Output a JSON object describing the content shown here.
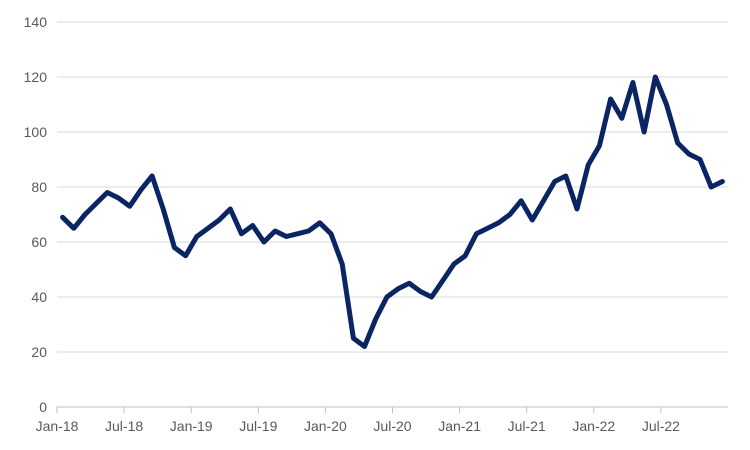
{
  "chart_data": {
    "type": "line",
    "title": "",
    "xlabel": "",
    "ylabel": "",
    "ylim": [
      0,
      140
    ],
    "y_ticks": [
      0,
      20,
      40,
      60,
      80,
      100,
      120,
      140
    ],
    "xlim": [
      "2018-01",
      "2022-12"
    ],
    "x_ticks": [
      "Jan-18",
      "Jul-18",
      "Jan-19",
      "Jul-19",
      "Jan-20",
      "Jul-20",
      "Jan-21",
      "Jul-21",
      "Jan-22",
      "Jul-22"
    ],
    "grid": "horizontal",
    "legend": "none",
    "line_color": "#0b2463",
    "series": [
      {
        "x": [
          "2018-01",
          "2018-02",
          "2018-03",
          "2018-04",
          "2018-05",
          "2018-06",
          "2018-07",
          "2018-08",
          "2018-09",
          "2018-10",
          "2018-11",
          "2018-12",
          "2019-01",
          "2019-02",
          "2019-03",
          "2019-04",
          "2019-05",
          "2019-06",
          "2019-07",
          "2019-08",
          "2019-09",
          "2019-10",
          "2019-11",
          "2019-12",
          "2020-01",
          "2020-02",
          "2020-03",
          "2020-04",
          "2020-05",
          "2020-06",
          "2020-07",
          "2020-08",
          "2020-09",
          "2020-10",
          "2020-11",
          "2020-12",
          "2021-01",
          "2021-02",
          "2021-03",
          "2021-04",
          "2021-05",
          "2021-06",
          "2021-07",
          "2021-08",
          "2021-09",
          "2021-10",
          "2021-11",
          "2021-12",
          "2022-01",
          "2022-02",
          "2022-03",
          "2022-04",
          "2022-05",
          "2022-06",
          "2022-07",
          "2022-08",
          "2022-09",
          "2022-10",
          "2022-11",
          "2022-12"
        ],
        "values": [
          69,
          65,
          70,
          74,
          78,
          76,
          73,
          79,
          84,
          72,
          58,
          55,
          62,
          65,
          68,
          72,
          63,
          66,
          60,
          64,
          62,
          63,
          64,
          67,
          63,
          52,
          25,
          22,
          32,
          40,
          43,
          45,
          42,
          40,
          46,
          52,
          55,
          63,
          65,
          67,
          70,
          75,
          68,
          75,
          82,
          84,
          72,
          88,
          95,
          112,
          105,
          118,
          100,
          120,
          110,
          96,
          92,
          90,
          80,
          82
        ]
      }
    ]
  }
}
